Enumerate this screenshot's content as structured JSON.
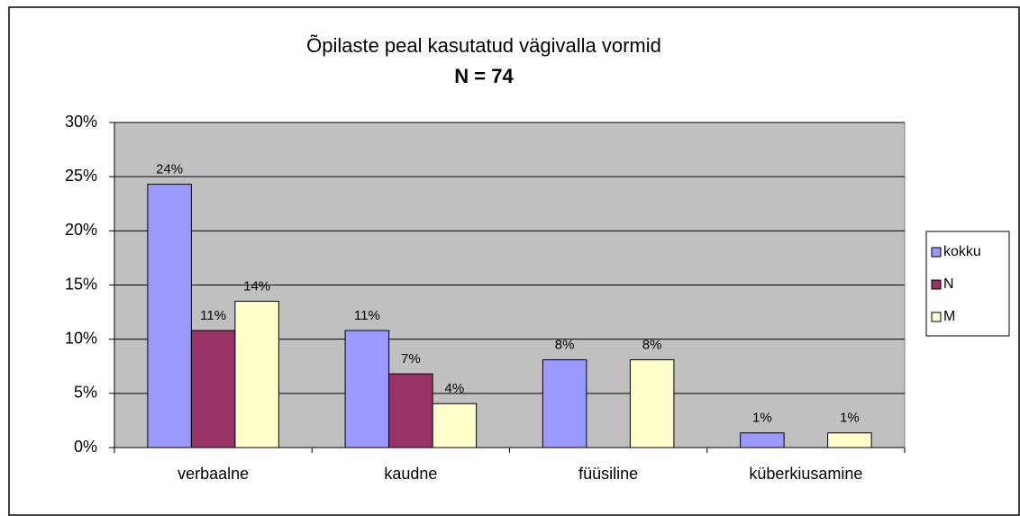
{
  "chart_data": {
    "type": "bar",
    "title": "Õpilaste peal kasutatud vägivalla vormid",
    "subtitle": "N = 74",
    "categories": [
      "verbaalne",
      "kaudne",
      "füüsiline",
      "küberkiusamine"
    ],
    "series": [
      {
        "name": "kokku",
        "color": "#9999ff",
        "values": [
          24.3,
          10.8,
          8.1,
          1.35
        ],
        "value_labels": [
          "24%",
          "11%",
          "8%",
          "1%"
        ]
      },
      {
        "name": "N",
        "color": "#993366",
        "values": [
          10.8,
          6.8,
          null,
          null
        ],
        "value_labels": [
          "11%",
          "7%",
          null,
          null
        ]
      },
      {
        "name": "M",
        "color": "#ffffcc",
        "values": [
          13.5,
          4.05,
          8.1,
          1.35
        ],
        "value_labels": [
          "14%",
          "4%",
          "8%",
          "1%"
        ]
      }
    ],
    "ylim": [
      0,
      30
    ],
    "yticks": [
      {
        "value": 0,
        "label": "0%"
      },
      {
        "value": 5,
        "label": "5%"
      },
      {
        "value": 10,
        "label": "10%"
      },
      {
        "value": 15,
        "label": "15%"
      },
      {
        "value": 20,
        "label": "20%"
      },
      {
        "value": 25,
        "label": "25%"
      },
      {
        "value": 30,
        "label": "30%"
      }
    ],
    "grid": true,
    "legend": "right"
  }
}
